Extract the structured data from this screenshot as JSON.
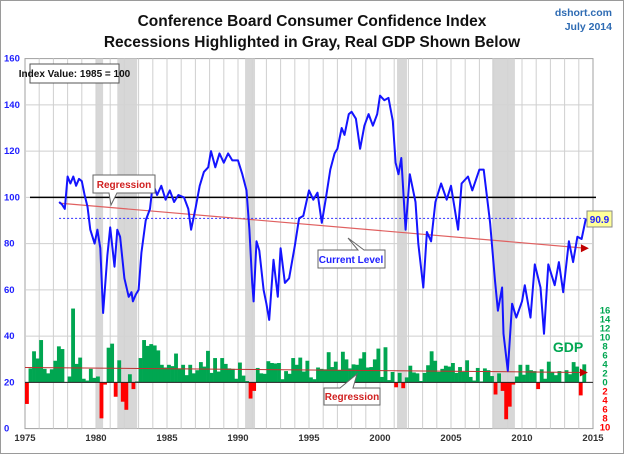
{
  "chart_data": {
    "type": "line",
    "title": "Conference Board Consumer Confidence Index",
    "subtitle": "Recessions Highlighted in Gray, Real GDP Shown Below",
    "source": "dshort.com",
    "date": "July 2014",
    "index_note": "Index Value: 1985 = 100",
    "xlim": [
      1975,
      2015
    ],
    "x_ticks": [
      "1975",
      "1980",
      "1985",
      "1990",
      "1995",
      "2000",
      "2005",
      "2010",
      "2015"
    ],
    "ylim": [
      0,
      160
    ],
    "y_ticks": [
      "0",
      "20",
      "40",
      "60",
      "80",
      "100",
      "120",
      "140",
      "160"
    ],
    "gdp_y_ticks_pos": [
      "0",
      "2",
      "4",
      "6",
      "8",
      "10",
      "12",
      "14",
      "16"
    ],
    "gdp_y_ticks_neg": [
      "2",
      "4",
      "6",
      "8",
      "10"
    ],
    "grid": true,
    "reference_line": 100,
    "current_level": 90.9,
    "current_level_label": "90.9",
    "labels": {
      "regression_top": "Regression",
      "current_level": "Current Level",
      "regression_bottom": "Regression",
      "gdp": "GDP"
    },
    "recessions": [
      [
        1980.0,
        1980.5
      ],
      [
        1981.5,
        1982.9
      ],
      [
        1990.5,
        1991.2
      ],
      [
        2001.2,
        2001.9
      ],
      [
        2007.9,
        2009.5
      ]
    ],
    "cci_series": {
      "name": "Consumer Confidence Index",
      "points": [
        [
          1977.4,
          98
        ],
        [
          1977.6,
          97
        ],
        [
          1977.8,
          95
        ],
        [
          1978.0,
          109
        ],
        [
          1978.2,
          106
        ],
        [
          1978.4,
          109
        ],
        [
          1978.6,
          105
        ],
        [
          1978.8,
          108
        ],
        [
          1979.0,
          107
        ],
        [
          1979.2,
          101
        ],
        [
          1979.4,
          96
        ],
        [
          1979.6,
          86
        ],
        [
          1979.9,
          80
        ],
        [
          1980.1,
          86
        ],
        [
          1980.3,
          78
        ],
        [
          1980.5,
          50
        ],
        [
          1980.8,
          75
        ],
        [
          1981.0,
          87
        ],
        [
          1981.3,
          70
        ],
        [
          1981.5,
          86
        ],
        [
          1981.7,
          83
        ],
        [
          1982.0,
          65
        ],
        [
          1982.3,
          57
        ],
        [
          1982.5,
          59
        ],
        [
          1982.6,
          55
        ],
        [
          1982.8,
          58
        ],
        [
          1983.0,
          60
        ],
        [
          1983.2,
          76
        ],
        [
          1983.5,
          90
        ],
        [
          1983.8,
          95
        ],
        [
          1984.0,
          106
        ],
        [
          1984.3,
          101
        ],
        [
          1984.6,
          105
        ],
        [
          1984.9,
          99
        ],
        [
          1985.2,
          103
        ],
        [
          1985.5,
          98
        ],
        [
          1985.8,
          101
        ],
        [
          1986.2,
          100
        ],
        [
          1986.5,
          95
        ],
        [
          1986.7,
          86
        ],
        [
          1987.0,
          95
        ],
        [
          1987.3,
          105
        ],
        [
          1987.6,
          111
        ],
        [
          1987.9,
          113
        ],
        [
          1988.1,
          120
        ],
        [
          1988.4,
          113
        ],
        [
          1988.7,
          119
        ],
        [
          1989.0,
          115
        ],
        [
          1989.3,
          119
        ],
        [
          1989.6,
          116
        ],
        [
          1990.0,
          116
        ],
        [
          1990.3,
          110
        ],
        [
          1990.6,
          103
        ],
        [
          1990.8,
          86
        ],
        [
          1991.0,
          63
        ],
        [
          1991.1,
          55
        ],
        [
          1991.3,
          81
        ],
        [
          1991.5,
          77
        ],
        [
          1991.8,
          60
        ],
        [
          1992.0,
          54
        ],
        [
          1992.2,
          47
        ],
        [
          1992.5,
          73
        ],
        [
          1992.8,
          57
        ],
        [
          1993.0,
          78
        ],
        [
          1993.3,
          63
        ],
        [
          1993.6,
          65
        ],
        [
          1994.0,
          79
        ],
        [
          1994.3,
          91
        ],
        [
          1994.6,
          92
        ],
        [
          1995.0,
          103
        ],
        [
          1995.3,
          99
        ],
        [
          1995.6,
          102
        ],
        [
          1995.9,
          89
        ],
        [
          1996.2,
          100
        ],
        [
          1996.5,
          112
        ],
        [
          1996.8,
          119
        ],
        [
          1997.0,
          121
        ],
        [
          1997.3,
          130
        ],
        [
          1997.5,
          127
        ],
        [
          1997.8,
          136
        ],
        [
          1998.0,
          137
        ],
        [
          1998.3,
          134
        ],
        [
          1998.6,
          121
        ],
        [
          1998.9,
          131
        ],
        [
          1999.2,
          136
        ],
        [
          1999.5,
          131
        ],
        [
          1999.8,
          136
        ],
        [
          2000.0,
          144
        ],
        [
          2000.3,
          142
        ],
        [
          2000.6,
          143
        ],
        [
          2000.9,
          133
        ],
        [
          2001.1,
          115
        ],
        [
          2001.3,
          110
        ],
        [
          2001.5,
          117
        ],
        [
          2001.8,
          86
        ],
        [
          2002.1,
          110
        ],
        [
          2002.5,
          98
        ],
        [
          2002.7,
          80
        ],
        [
          2003.05,
          61
        ],
        [
          2003.3,
          85
        ],
        [
          2003.6,
          81
        ],
        [
          2003.9,
          98
        ],
        [
          2004.3,
          106
        ],
        [
          2004.7,
          99
        ],
        [
          2005.0,
          105
        ],
        [
          2005.5,
          86
        ],
        [
          2005.75,
          106
        ],
        [
          2006.2,
          109
        ],
        [
          2006.5,
          103
        ],
        [
          2007.0,
          112
        ],
        [
          2007.3,
          112
        ],
        [
          2007.5,
          102
        ],
        [
          2007.75,
          89
        ],
        [
          2008.1,
          64
        ],
        [
          2008.3,
          51
        ],
        [
          2008.6,
          61
        ],
        [
          2008.7,
          41
        ],
        [
          2009.0,
          25
        ],
        [
          2009.3,
          54
        ],
        [
          2009.6,
          48
        ],
        [
          2010.0,
          55
        ],
        [
          2010.2,
          62
        ],
        [
          2010.6,
          48
        ],
        [
          2010.9,
          71
        ],
        [
          2011.3,
          61
        ],
        [
          2011.55,
          41
        ],
        [
          2011.85,
          71
        ],
        [
          2012.3,
          62
        ],
        [
          2012.6,
          72
        ],
        [
          2012.9,
          59
        ],
        [
          2013.3,
          81
        ],
        [
          2013.6,
          72
        ],
        [
          2013.9,
          83
        ],
        [
          2014.2,
          82
        ],
        [
          2014.5,
          90.9
        ]
      ]
    },
    "cci_regression": {
      "start": [
        1977.4,
        97.5
      ],
      "end": [
        2014.5,
        78
      ]
    },
    "gdp_series": {
      "name": "Real GDP (annualized quarterly % change)",
      "start": 1975.0,
      "values": [
        -4.8,
        3.1,
        6.9,
        5.3,
        9.4,
        3.0,
        2.0,
        2.9,
        4.8,
        8.0,
        7.4,
        0.0,
        1.3,
        16.4,
        4.1,
        5.5,
        0.8,
        0.4,
        3.0,
        1.0,
        1.3,
        -8.0,
        -0.5,
        7.7,
        8.6,
        -3.2,
        4.9,
        -4.3,
        -6.1,
        1.8,
        -1.5,
        0.2,
        5.4,
        9.4,
        8.1,
        8.5,
        8.2,
        7.1,
        3.9,
        3.3,
        3.9,
        3.6,
        6.4,
        3.1,
        3.9,
        1.6,
        3.9,
        2.0,
        2.7,
        4.5,
        3.5,
        7.0,
        2.1,
        5.4,
        2.4,
        5.4,
        4.1,
        3.1,
        3.0,
        0.8,
        4.4,
        1.5,
        0.3,
        -3.6,
        -1.9,
        3.2,
        2.0,
        1.9,
        4.7,
        4.3,
        4.2,
        4.3,
        0.7,
        2.5,
        1.9,
        5.4,
        3.9,
        5.5,
        2.4,
        4.8,
        1.1,
        0.7,
        3.3,
        3.0,
        2.9,
        6.7,
        3.4,
        4.6,
        2.7,
        6.8,
        5.1,
        3.1,
        4.0,
        3.9,
        5.3,
        6.7,
        3.3,
        3.4,
        5.1,
        7.5,
        1.2,
        7.8,
        0.5,
        2.3,
        -1.1,
        2.1,
        -1.3,
        1.1,
        3.7,
        2.2,
        2.0,
        0.3,
        2.1,
        3.8,
        6.9,
        4.8,
        2.3,
        3.0,
        3.7,
        3.5,
        4.3,
        2.1,
        3.4,
        2.3,
        4.9,
        1.2,
        0.4,
        3.2,
        0.2,
        3.1,
        2.7,
        1.4,
        -2.7,
        2.0,
        -1.9,
        -8.2,
        -5.4,
        -0.5,
        1.3,
        3.9,
        1.7,
        3.9,
        2.7,
        2.5,
        -1.5,
        2.9,
        0.8,
        4.6,
        2.3,
        1.6,
        2.5,
        0.1,
        2.7,
        1.8,
        4.5,
        3.5,
        -2.9,
        4.0
      ]
    },
    "gdp_regression": {
      "start": [
        1975.0,
        3.3
      ],
      "end": [
        2014.5,
        2.2
      ]
    },
    "colors": {
      "cci": "#1414ff",
      "gdp_pos": "#00a651",
      "gdp_neg": "#ff0000",
      "recession": "#d3d3d3",
      "regression": "#e06060",
      "reference": "#000000",
      "current_level": "#3030ff",
      "label_box": "#ffff99"
    }
  }
}
